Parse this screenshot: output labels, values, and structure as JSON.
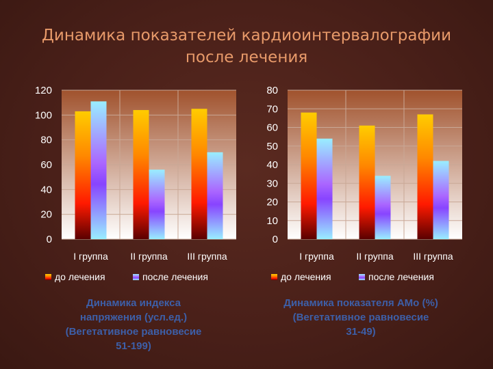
{
  "title": "Динамика показателей кардиоинтервалографии после лечения",
  "colors": {
    "before": [
      "#ffcc00",
      "#ff8800",
      "#ff1a00",
      "#5a0000"
    ],
    "after": [
      "#99eeff",
      "#aa66ff",
      "#8844ff",
      "#99eeff"
    ],
    "plot_bg_top": "#a0522d",
    "plot_bg_bottom": "#ffffff"
  },
  "captions": [
    "Динамика индекса\nнапряжения (усл.ед.)\n(Вегетативное равновесие\n51-199)",
    "Динамика показателя АМо (%)\n(Вегетативное равновесие\n31-49)"
  ],
  "chart_data": [
    {
      "type": "bar",
      "categories": [
        "I группа",
        "II группа",
        "III группа"
      ],
      "series": [
        {
          "name": "до лечения",
          "values": [
            103,
            104,
            105
          ]
        },
        {
          "name": "после лечения",
          "values": [
            111,
            56,
            70
          ]
        }
      ],
      "ylim": [
        0,
        120
      ],
      "yticks": [
        0,
        20,
        40,
        60,
        80,
        100,
        120
      ],
      "grid": true,
      "legend": "bottom"
    },
    {
      "type": "bar",
      "categories": [
        "I группа",
        "II группа",
        "III группа"
      ],
      "series": [
        {
          "name": "до лечения",
          "values": [
            68,
            61,
            67
          ]
        },
        {
          "name": "после лечения",
          "values": [
            54,
            34,
            42
          ]
        }
      ],
      "ylim": [
        0,
        80
      ],
      "yticks": [
        0,
        10,
        20,
        30,
        40,
        50,
        60,
        70,
        80
      ],
      "grid": true,
      "legend": "bottom"
    }
  ]
}
